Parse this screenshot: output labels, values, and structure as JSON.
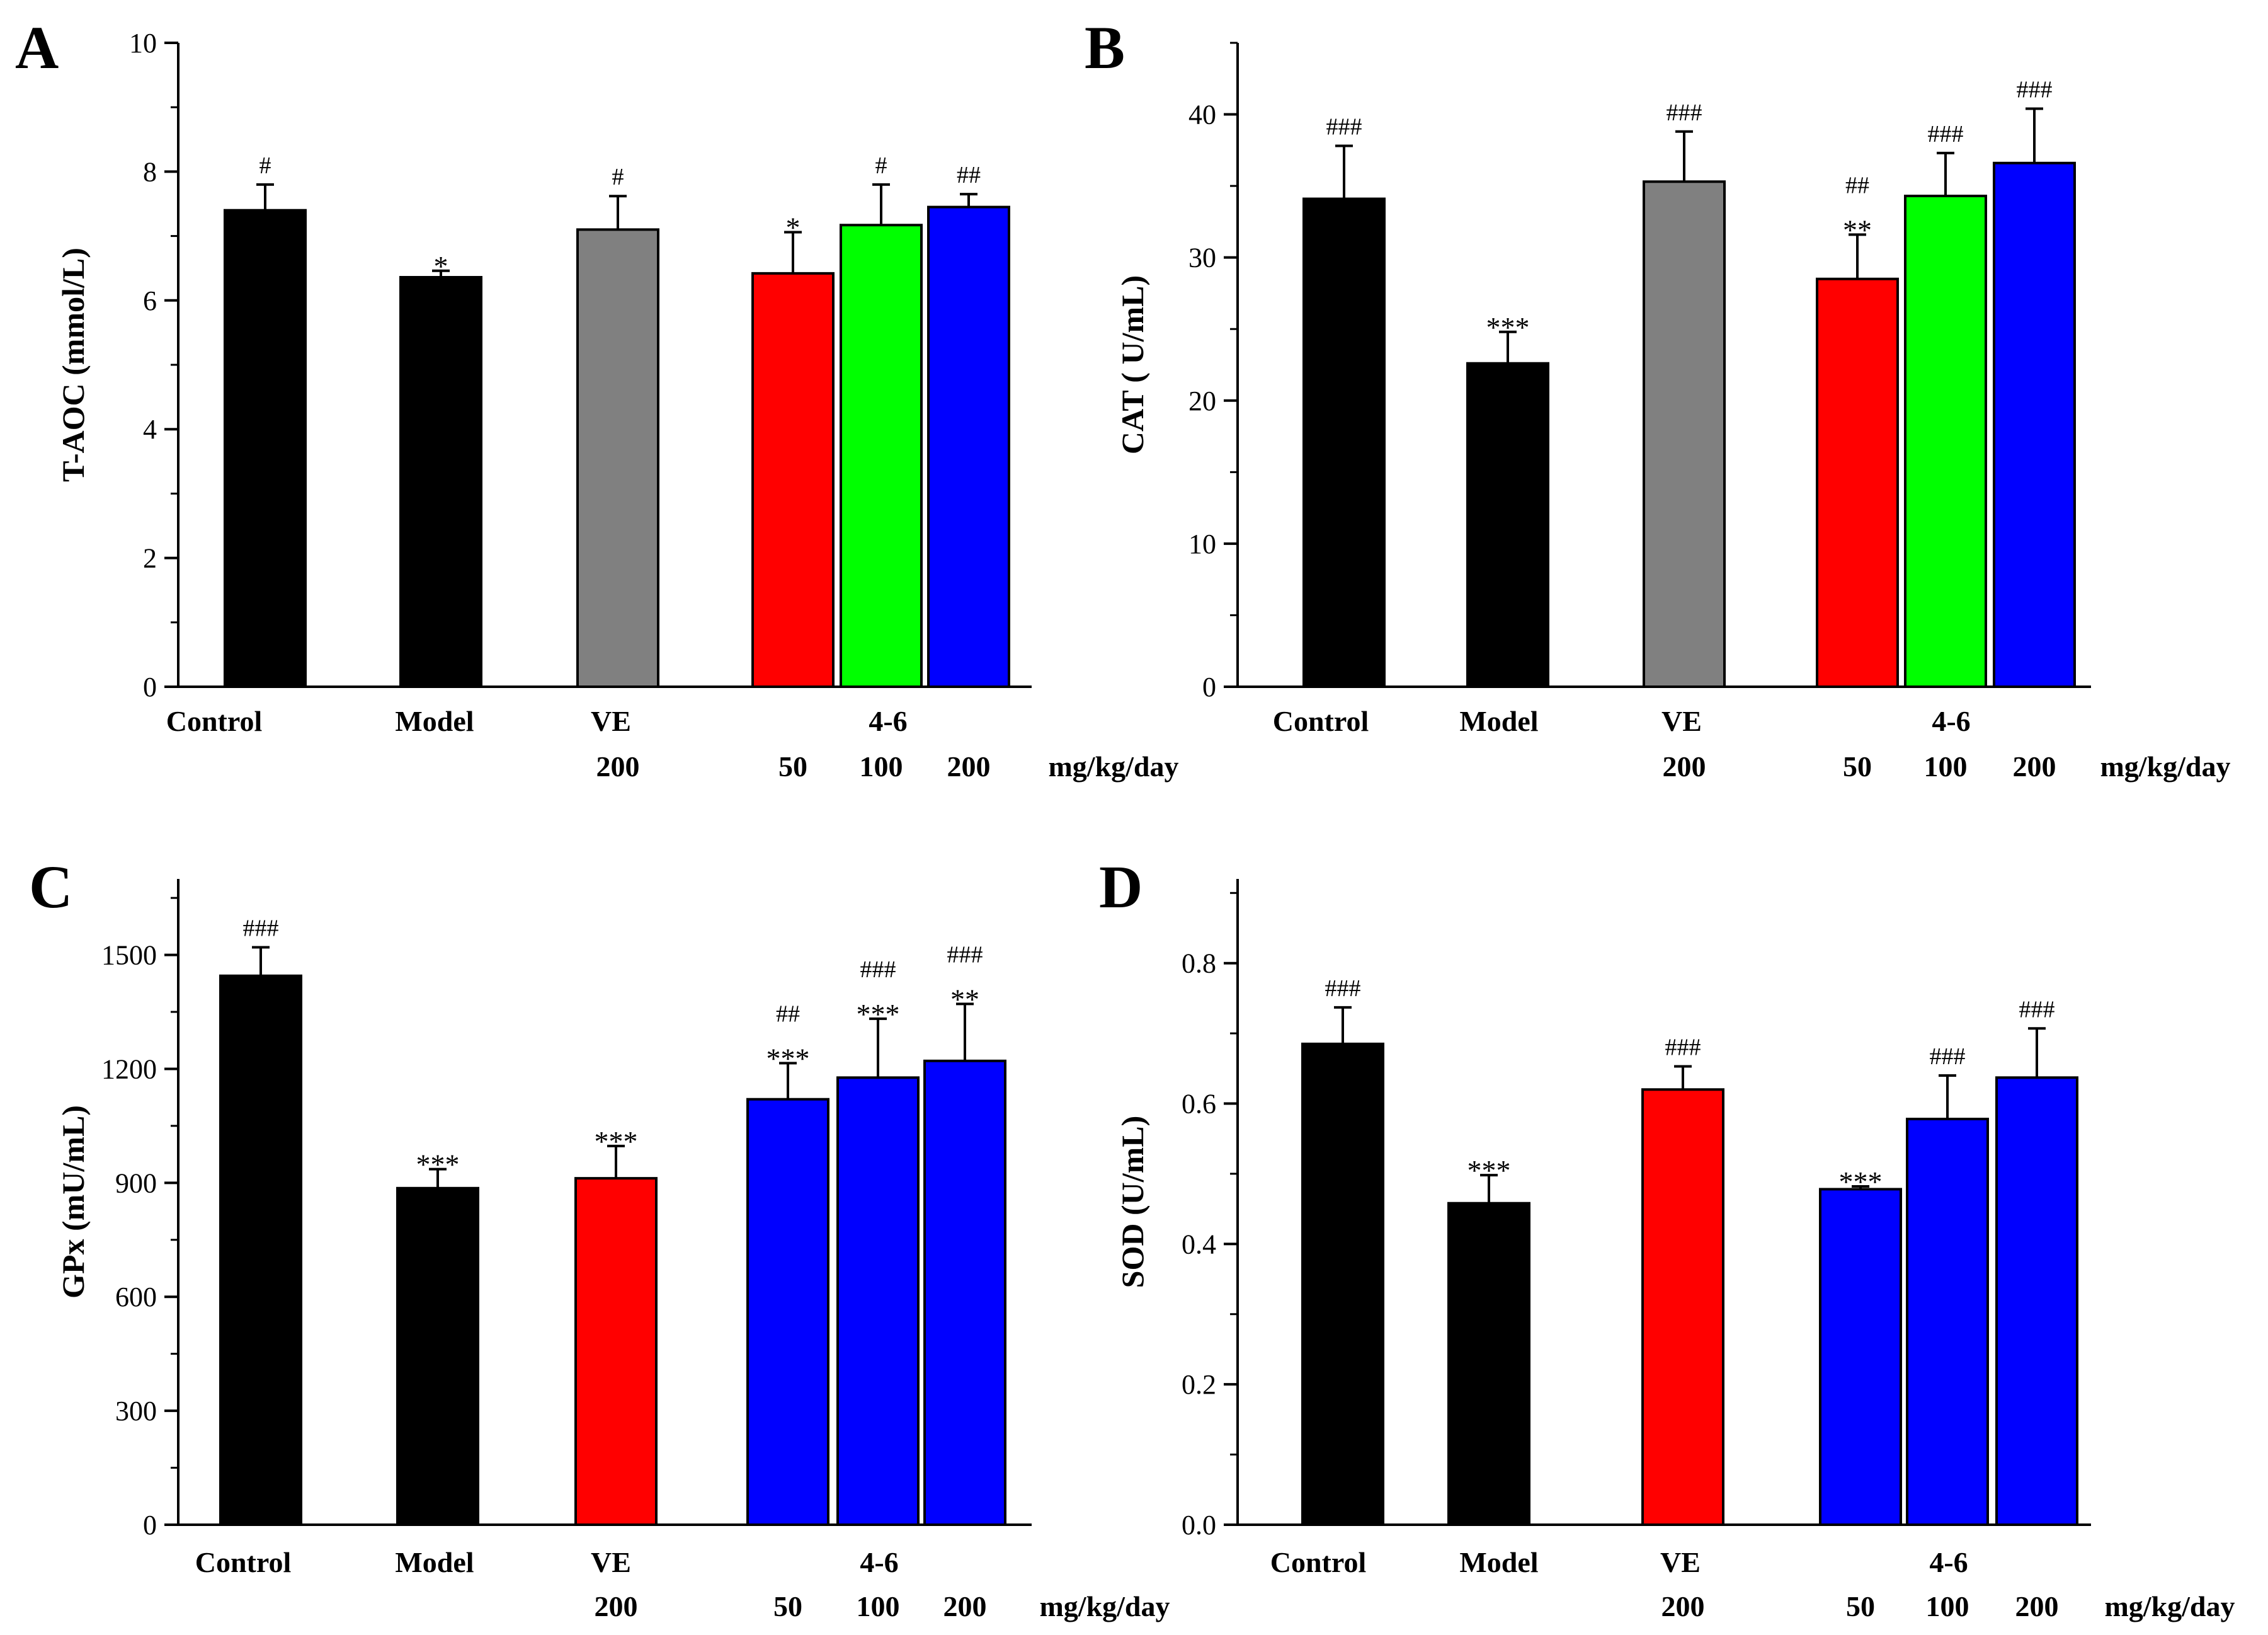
{
  "chart_data": [
    {
      "panel": "A",
      "type": "bar",
      "ylabel": "T-AOC (mmol/L)",
      "ylim": [
        0,
        10
      ],
      "yticks": [
        0,
        2,
        4,
        6,
        8,
        10
      ],
      "categories": [
        "Control",
        "Model",
        "VE",
        "4-6",
        "4-6",
        "4-6"
      ],
      "group_labels": [
        "Control",
        "Model",
        "VE",
        "4-6"
      ],
      "dose_labels": [
        "",
        "",
        "200",
        "50",
        "100",
        "200"
      ],
      "unit_label": "mg/kg/day",
      "values": [
        7.4,
        6.36,
        7.1,
        6.42,
        7.17,
        7.45
      ],
      "errors": [
        0.4,
        0.1,
        0.52,
        0.64,
        0.63,
        0.2
      ],
      "colors": [
        "#000000",
        "#000000",
        "#808080",
        "#ff0000",
        "#00ff00",
        "#0000ff"
      ],
      "star_marks": [
        "",
        "*",
        "",
        "*",
        "",
        ""
      ],
      "hash_marks": [
        "#",
        "",
        "#",
        "",
        "#",
        "##"
      ],
      "grid": false
    },
    {
      "panel": "B",
      "type": "bar",
      "ylabel": "CAT ( U/mL)",
      "ylim": [
        0,
        45
      ],
      "yticks": [
        0,
        10,
        20,
        30,
        40
      ],
      "categories": [
        "Control",
        "Model",
        "VE",
        "4-6",
        "4-6",
        "4-6"
      ],
      "group_labels": [
        "Control",
        "Model",
        "VE",
        "4-6"
      ],
      "dose_labels": [
        "",
        "",
        "200",
        "50",
        "100",
        "200"
      ],
      "unit_label": "mg/kg/day",
      "values": [
        34.1,
        22.6,
        35.3,
        28.5,
        34.3,
        36.6
      ],
      "errors": [
        3.7,
        2.2,
        3.5,
        3.1,
        3.0,
        3.8
      ],
      "colors": [
        "#000000",
        "#000000",
        "#808080",
        "#ff0000",
        "#00ff00",
        "#0000ff"
      ],
      "star_marks": [
        "",
        "***",
        "",
        "**",
        "",
        ""
      ],
      "hash_marks": [
        "###",
        "",
        "###",
        "##",
        "###",
        "###"
      ],
      "grid": false
    },
    {
      "panel": "C",
      "type": "bar",
      "ylabel": "GPx (mU/mL)",
      "ylim": [
        0,
        1700
      ],
      "yticks": [
        0,
        300,
        600,
        900,
        1200,
        1500
      ],
      "categories": [
        "Control",
        "Model",
        "VE",
        "4-6",
        "4-6",
        "4-6"
      ],
      "group_labels": [
        "Control",
        "Model",
        "VE",
        "4-6"
      ],
      "dose_labels": [
        "",
        "",
        "200",
        "50",
        "100",
        "200"
      ],
      "unit_label": "mg/kg/day",
      "values": [
        1445,
        886,
        912,
        1120,
        1177,
        1221
      ],
      "errors": [
        75,
        50,
        85,
        95,
        155,
        150
      ],
      "colors": [
        "#000000",
        "#000000",
        "#ff0000",
        "#0000ff",
        "#0000ff",
        "#0000ff"
      ],
      "star_marks": [
        "",
        "***",
        "***",
        "***",
        "***",
        "**"
      ],
      "hash_marks": [
        "###",
        "",
        "",
        "##",
        "###",
        "###"
      ],
      "grid": false
    },
    {
      "panel": "D",
      "type": "bar",
      "ylabel": "SOD (U/mL)",
      "ylim": [
        0,
        0.92
      ],
      "yticks": [
        "0.0",
        "0.2",
        "0.4",
        "0.6",
        "0.8"
      ],
      "categories": [
        "Control",
        "Model",
        "VE",
        "4-6",
        "4-6",
        "4-6"
      ],
      "group_labels": [
        "Control",
        "Model",
        "VE",
        "4-6"
      ],
      "dose_labels": [
        "",
        "",
        "200",
        "50",
        "100",
        "200"
      ],
      "unit_label": "mg/kg/day",
      "values": [
        0.685,
        0.458,
        0.62,
        0.478,
        0.578,
        0.637
      ],
      "errors": [
        0.052,
        0.04,
        0.033,
        0.004,
        0.062,
        0.07
      ],
      "colors": [
        "#000000",
        "#000000",
        "#ff0000",
        "#0000ff",
        "#0000ff",
        "#0000ff"
      ],
      "star_marks": [
        "",
        "***",
        "",
        "***",
        "",
        ""
      ],
      "hash_marks": [
        "###",
        "",
        "###",
        "",
        "###",
        "###"
      ],
      "grid": false
    }
  ]
}
